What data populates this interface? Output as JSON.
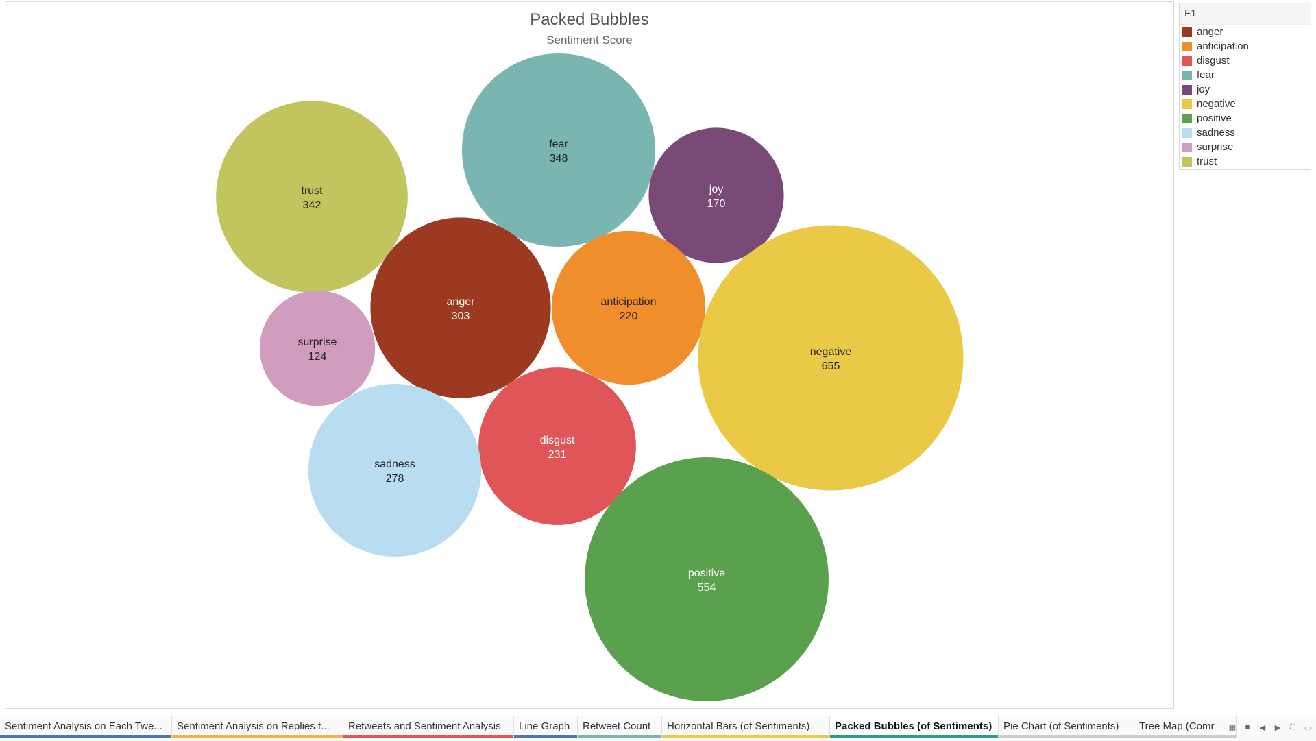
{
  "chart_data": {
    "type": "bubble",
    "title": "Packed Bubbles",
    "subtitle": "Sentiment Score",
    "bubbles": [
      {
        "label": "fear",
        "value": 348,
        "color": "#79B6B2",
        "text_color": "#222"
      },
      {
        "label": "trust",
        "value": 342,
        "color": "#C2C55D",
        "text_color": "#222"
      },
      {
        "label": "joy",
        "value": 170,
        "color": "#7A4A76",
        "text_color": "#ffffff"
      },
      {
        "label": "anger",
        "value": 303,
        "color": "#9C3A21",
        "text_color": "#ffffff"
      },
      {
        "label": "anticipation",
        "value": 220,
        "color": "#F18E2C",
        "text_color": "#222"
      },
      {
        "label": "surprise",
        "value": 124,
        "color": "#D09DBF",
        "text_color": "#222"
      },
      {
        "label": "negative",
        "value": 655,
        "color": "#EAC947",
        "text_color": "#222"
      },
      {
        "label": "disgust",
        "value": 231,
        "color": "#E05558",
        "text_color": "#ffffff"
      },
      {
        "label": "sadness",
        "value": 278,
        "color": "#B8DDF0",
        "text_color": "#222"
      },
      {
        "label": "positive",
        "value": 554,
        "color": "#5AA14E",
        "text_color": "#ffffff"
      }
    ]
  },
  "legend": {
    "title": "F1",
    "items": [
      {
        "label": "anger",
        "color": "#9C3A21"
      },
      {
        "label": "anticipation",
        "color": "#F18E2C"
      },
      {
        "label": "disgust",
        "color": "#E05558"
      },
      {
        "label": "fear",
        "color": "#79B6B2"
      },
      {
        "label": "joy",
        "color": "#7A4A76"
      },
      {
        "label": "negative",
        "color": "#EAC947"
      },
      {
        "label": "positive",
        "color": "#5AA14E"
      },
      {
        "label": "sadness",
        "color": "#B8DDF0"
      },
      {
        "label": "surprise",
        "color": "#D09DBF"
      },
      {
        "label": "trust",
        "color": "#C2C55D"
      }
    ]
  },
  "tabs": [
    {
      "label": "Sentiment Analysis on Each Twe...",
      "color": "#4E79A7",
      "active": false
    },
    {
      "label": "Sentiment Analysis on Replies t...",
      "color": "#F2B447",
      "active": false
    },
    {
      "label": "Retweets and Sentiment Analysis",
      "color": "#E15759",
      "active": false
    },
    {
      "label": "Line Graph",
      "color": "#4E79A7",
      "active": false
    },
    {
      "label": "Retweet Count",
      "color": "#76B7B2",
      "active": false
    },
    {
      "label": "Horizontal Bars (of Sentiments)",
      "color": "#EDC948",
      "active": false
    },
    {
      "label": "Packed Bubbles (of Sentiments)",
      "color": "#2A9D8F",
      "active": true
    },
    {
      "label": "Pie Chart (of Sentiments)",
      "color": "#cccccc",
      "active": false
    },
    {
      "label": "Tree Map (Comr",
      "color": "#cccccc",
      "active": false
    }
  ],
  "controls": [
    {
      "name": "grid-view-icon",
      "glyph": "▦"
    },
    {
      "name": "single-view-icon",
      "glyph": "■"
    },
    {
      "name": "prev-sheet-icon",
      "glyph": "◀"
    },
    {
      "name": "next-sheet-icon",
      "glyph": "▶"
    },
    {
      "name": "fit-icon",
      "glyph": "⛶"
    },
    {
      "name": "presentation-icon",
      "glyph": "▭"
    }
  ]
}
